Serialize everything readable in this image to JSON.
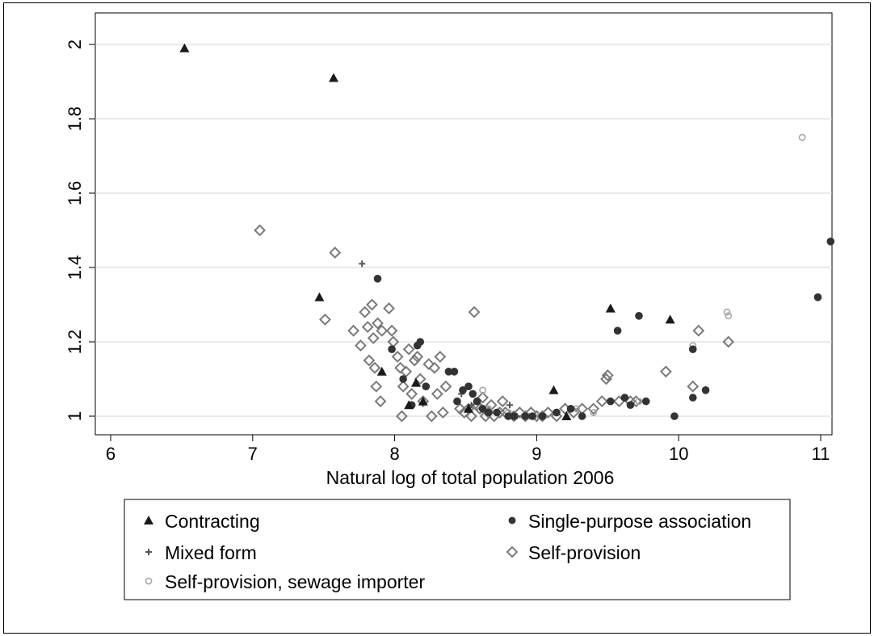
{
  "chart_data": {
    "type": "scatter",
    "xlabel": "Natural log of total population 2006",
    "ylabel": "",
    "xlim": [
      5.9,
      11.1
    ],
    "ylim": [
      0.98,
      2.03
    ],
    "x_ticks": [
      "6",
      "7",
      "8",
      "9",
      "10",
      "11"
    ],
    "y_ticks": [
      "1",
      "1.2",
      "1.4",
      "1.6",
      "1.8",
      "2"
    ],
    "grid": "horizontal",
    "legend_placement": "bottom",
    "series": [
      {
        "name": "Contracting",
        "marker": "triangle",
        "color": "#1a1a1a",
        "points": [
          [
            6.52,
            1.99
          ],
          [
            7.57,
            1.91
          ],
          [
            7.47,
            1.32
          ],
          [
            7.91,
            1.12
          ],
          [
            8.15,
            1.09
          ],
          [
            8.1,
            1.03
          ],
          [
            8.2,
            1.04
          ],
          [
            8.52,
            1.02
          ],
          [
            9.12,
            1.07
          ],
          [
            9.21,
            1.0
          ],
          [
            9.52,
            1.29
          ],
          [
            9.94,
            1.26
          ]
        ]
      },
      {
        "name": "Single-purpose association",
        "marker": "circle",
        "color": "#333333",
        "points": [
          [
            7.88,
            1.37
          ],
          [
            7.98,
            1.18
          ],
          [
            8.06,
            1.1
          ],
          [
            8.12,
            1.03
          ],
          [
            8.18,
            1.2
          ],
          [
            8.16,
            1.19
          ],
          [
            8.22,
            1.08
          ],
          [
            8.38,
            1.12
          ],
          [
            8.42,
            1.12
          ],
          [
            8.44,
            1.04
          ],
          [
            8.48,
            1.07
          ],
          [
            8.52,
            1.08
          ],
          [
            8.55,
            1.06
          ],
          [
            8.58,
            1.04
          ],
          [
            8.62,
            1.02
          ],
          [
            8.66,
            1.01
          ],
          [
            8.72,
            1.01
          ],
          [
            8.8,
            1.0
          ],
          [
            8.84,
            1.0
          ],
          [
            8.92,
            1.0
          ],
          [
            8.97,
            1.0
          ],
          [
            9.04,
            1.0
          ],
          [
            9.14,
            1.01
          ],
          [
            9.24,
            1.02
          ],
          [
            9.32,
            1.0
          ],
          [
            9.52,
            1.04
          ],
          [
            9.57,
            1.23
          ],
          [
            9.62,
            1.05
          ],
          [
            9.66,
            1.03
          ],
          [
            9.72,
            1.27
          ],
          [
            9.77,
            1.04
          ],
          [
            9.97,
            1.0
          ],
          [
            10.1,
            1.05
          ],
          [
            10.1,
            1.18
          ],
          [
            10.19,
            1.07
          ],
          [
            10.98,
            1.32
          ],
          [
            11.07,
            1.47
          ]
        ]
      },
      {
        "name": "Mixed form",
        "marker": "plus",
        "color": "#555555",
        "points": [
          [
            7.77,
            1.41
          ],
          [
            8.47,
            1.06
          ],
          [
            8.54,
            1.03
          ],
          [
            8.62,
            1.02
          ],
          [
            8.72,
            1.01
          ],
          [
            8.81,
            1.03
          ],
          [
            8.86,
            1.0
          ]
        ]
      },
      {
        "name": "Self-provision",
        "marker": "diamond",
        "color": "#7a7a7a",
        "points": [
          [
            7.05,
            1.5
          ],
          [
            7.51,
            1.26
          ],
          [
            7.58,
            1.44
          ],
          [
            7.71,
            1.23
          ],
          [
            7.76,
            1.19
          ],
          [
            7.79,
            1.28
          ],
          [
            7.81,
            1.24
          ],
          [
            7.82,
            1.15
          ],
          [
            7.84,
            1.3
          ],
          [
            7.85,
            1.21
          ],
          [
            7.86,
            1.13
          ],
          [
            7.87,
            1.08
          ],
          [
            7.88,
            1.25
          ],
          [
            7.9,
            1.04
          ],
          [
            7.91,
            1.23
          ],
          [
            7.96,
            1.29
          ],
          [
            7.98,
            1.23
          ],
          [
            7.99,
            1.2
          ],
          [
            8.02,
            1.16
          ],
          [
            8.04,
            1.13
          ],
          [
            8.05,
            1.0
          ],
          [
            8.06,
            1.08
          ],
          [
            8.08,
            1.12
          ],
          [
            8.1,
            1.18
          ],
          [
            8.12,
            1.06
          ],
          [
            8.14,
            1.15
          ],
          [
            8.16,
            1.16
          ],
          [
            8.18,
            1.1
          ],
          [
            8.2,
            1.04
          ],
          [
            8.24,
            1.14
          ],
          [
            8.26,
            1.0
          ],
          [
            8.28,
            1.13
          ],
          [
            8.3,
            1.06
          ],
          [
            8.32,
            1.16
          ],
          [
            8.34,
            1.01
          ],
          [
            8.36,
            1.08
          ],
          [
            8.46,
            1.02
          ],
          [
            8.49,
            1.01
          ],
          [
            8.52,
            1.02
          ],
          [
            8.54,
            1.0
          ],
          [
            8.56,
            1.28
          ],
          [
            8.58,
            1.03
          ],
          [
            8.6,
            1.02
          ],
          [
            8.62,
            1.05
          ],
          [
            8.64,
            1.0
          ],
          [
            8.66,
            1.01
          ],
          [
            8.68,
            1.03
          ],
          [
            8.7,
            1.0
          ],
          [
            8.74,
            1.01
          ],
          [
            8.76,
            1.04
          ],
          [
            8.78,
            1.01
          ],
          [
            8.84,
            1.0
          ],
          [
            8.88,
            1.01
          ],
          [
            8.92,
            1.0
          ],
          [
            8.96,
            1.01
          ],
          [
            9.0,
            1.0
          ],
          [
            9.04,
            1.0
          ],
          [
            9.08,
            1.01
          ],
          [
            9.14,
            1.0
          ],
          [
            9.2,
            1.02
          ],
          [
            9.26,
            1.01
          ],
          [
            9.32,
            1.02
          ],
          [
            9.4,
            1.02
          ],
          [
            9.46,
            1.04
          ],
          [
            9.49,
            1.1
          ],
          [
            9.5,
            1.11
          ],
          [
            9.58,
            1.04
          ],
          [
            9.66,
            1.04
          ],
          [
            9.7,
            1.04
          ],
          [
            9.91,
            1.12
          ],
          [
            10.1,
            1.08
          ],
          [
            10.14,
            1.23
          ],
          [
            10.35,
            1.2
          ]
        ]
      },
      {
        "name": "Self-provision, sewage importer",
        "marker": "circle-open",
        "color": "#a6a6a6",
        "points": [
          [
            8.62,
            1.07
          ],
          [
            8.66,
            1.02
          ],
          [
            8.72,
            1.01
          ],
          [
            8.8,
            1.01
          ],
          [
            8.94,
            1.0
          ],
          [
            9.02,
            1.0
          ],
          [
            9.28,
            1.02
          ],
          [
            9.4,
            1.01
          ],
          [
            9.72,
            1.04
          ],
          [
            10.1,
            1.19
          ],
          [
            10.34,
            1.28
          ],
          [
            10.35,
            1.27
          ],
          [
            10.87,
            1.75
          ]
        ]
      }
    ]
  }
}
